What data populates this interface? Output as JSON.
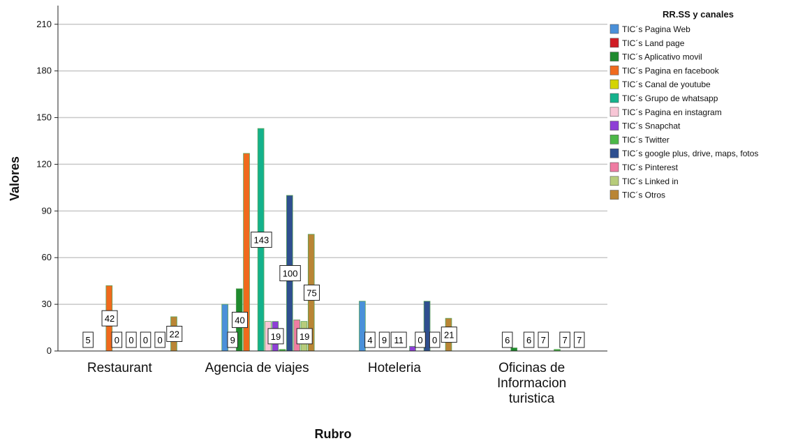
{
  "chart_data": {
    "type": "bar",
    "title": "",
    "xlabel": "Rubro",
    "ylabel": "Valores",
    "ylim": [
      0,
      222
    ],
    "yticks": [
      0,
      30,
      60,
      90,
      120,
      150,
      180,
      210
    ],
    "grid": true,
    "legend_title": "RR.SS y canales",
    "legend_position": "right",
    "categories": [
      "Restaurant",
      "Agencia de viajes",
      "Hoteleria",
      "Oficinas de Informacion turistica"
    ],
    "series": [
      {
        "name": "TIC´s Pagina Web",
        "color": "#4a90d9",
        "values": [
          0,
          30,
          32,
          0
        ]
      },
      {
        "name": "TIC´s Land page",
        "color": "#d01c24",
        "values": [
          0,
          0,
          0,
          0
        ]
      },
      {
        "name": "TIC´s Aplicativo movil",
        "color": "#1f8a2e",
        "values": [
          0,
          40,
          0,
          2
        ]
      },
      {
        "name": "TIC´s Pagina en facebook",
        "color": "#f06a1d",
        "values": [
          42,
          127,
          0,
          0
        ]
      },
      {
        "name": "TIC´s Canal de youtube",
        "color": "#d4d400",
        "values": [
          0,
          0,
          0,
          0
        ]
      },
      {
        "name": "TIC´s Grupo de whatsapp",
        "color": "#14b28c",
        "values": [
          0,
          143,
          0,
          0
        ]
      },
      {
        "name": "TIC´s Pagina en instagram",
        "color": "#f8c6d6",
        "values": [
          0,
          19,
          0,
          0
        ]
      },
      {
        "name": "TIC´s Snapchat",
        "color": "#8e3fd6",
        "values": [
          0,
          19,
          3,
          0
        ]
      },
      {
        "name": "TIC´s Twitter",
        "color": "#4cb848",
        "values": [
          0,
          1,
          0,
          1
        ]
      },
      {
        "name": "TIC´s google plus, drive, maps, fotos",
        "color": "#2f4f8f",
        "values": [
          0,
          100,
          32,
          0
        ]
      },
      {
        "name": "TIC´s Pinterest",
        "color": "#ef7ca2",
        "values": [
          0,
          20,
          0,
          0
        ]
      },
      {
        "name": "TIC´s Linked in",
        "color": "#b7cc7b",
        "values": [
          0,
          19,
          0,
          0
        ]
      },
      {
        "name": "TIC´s Otros",
        "color": "#b98535",
        "values": [
          22,
          75,
          21,
          0
        ]
      }
    ],
    "data_labels": [
      {
        "category": 0,
        "series": 0,
        "text": "5"
      },
      {
        "category": 0,
        "series": 3,
        "text": "42"
      },
      {
        "category": 0,
        "series": 4,
        "text": "0"
      },
      {
        "category": 0,
        "series": 6,
        "text": "0"
      },
      {
        "category": 0,
        "series": 8,
        "text": "0"
      },
      {
        "category": 0,
        "series": 10,
        "text": "0"
      },
      {
        "category": 0,
        "series": 12,
        "text": "22"
      },
      {
        "category": 1,
        "series": 1,
        "text": "9"
      },
      {
        "category": 1,
        "series": 2,
        "text": "40"
      },
      {
        "category": 1,
        "series": 5,
        "text": "143"
      },
      {
        "category": 1,
        "series": 7,
        "text": "19"
      },
      {
        "category": 1,
        "series": 9,
        "text": "100"
      },
      {
        "category": 1,
        "series": 11,
        "text": "19"
      },
      {
        "category": 1,
        "series": 12,
        "text": "75"
      },
      {
        "category": 2,
        "series": 1,
        "text": "4"
      },
      {
        "category": 2,
        "series": 3,
        "text": "9"
      },
      {
        "category": 2,
        "series": 5,
        "text": "11"
      },
      {
        "category": 2,
        "series": 8,
        "text": "0"
      },
      {
        "category": 2,
        "series": 10,
        "text": "0"
      },
      {
        "category": 2,
        "series": 12,
        "text": "21"
      },
      {
        "category": 3,
        "series": 1,
        "text": "6"
      },
      {
        "category": 3,
        "series": 4,
        "text": "6"
      },
      {
        "category": 3,
        "series": 6,
        "text": "7"
      },
      {
        "category": 3,
        "series": 9,
        "text": "7"
      },
      {
        "category": 3,
        "series": 11,
        "text": "7"
      }
    ]
  }
}
